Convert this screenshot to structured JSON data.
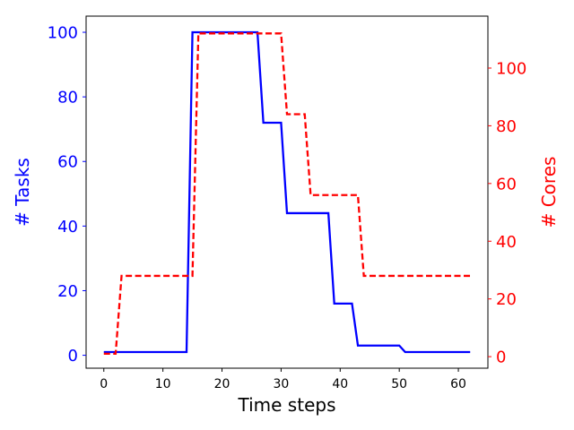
{
  "chart_data": {
    "type": "line",
    "xlabel": "Time steps",
    "ylabel_left": "# Tasks",
    "ylabel_right": "# Cores",
    "xlim": [
      -3,
      65
    ],
    "ylim_left": [
      -4,
      105
    ],
    "ylim_right": [
      -4,
      118
    ],
    "x_ticks": [
      0,
      10,
      20,
      30,
      40,
      50,
      60
    ],
    "y_ticks_left": [
      0,
      20,
      40,
      60,
      80,
      100
    ],
    "y_ticks_right": [
      0,
      20,
      40,
      60,
      80,
      100
    ],
    "grid": false,
    "colors": {
      "tasks": "#0000ff",
      "cores": "#ff0000"
    },
    "series": [
      {
        "axis": "left",
        "style": "solid",
        "points": [
          [
            0,
            1
          ],
          [
            14,
            1
          ],
          [
            15,
            100
          ],
          [
            26,
            100
          ],
          [
            27,
            72
          ],
          [
            30,
            72
          ],
          [
            31,
            44
          ],
          [
            38,
            44
          ],
          [
            39,
            16
          ],
          [
            42,
            16
          ],
          [
            43,
            3
          ],
          [
            50,
            3
          ],
          [
            51,
            1
          ],
          [
            62,
            1
          ]
        ]
      },
      {
        "axis": "right",
        "style": "dashed",
        "points": [
          [
            0,
            1
          ],
          [
            2,
            1
          ],
          [
            3,
            28
          ],
          [
            15,
            28
          ],
          [
            16,
            112
          ],
          [
            30,
            112
          ],
          [
            31,
            84
          ],
          [
            34,
            84
          ],
          [
            35,
            56
          ],
          [
            43,
            56
          ],
          [
            44,
            28
          ],
          [
            62,
            28
          ]
        ]
      }
    ]
  }
}
